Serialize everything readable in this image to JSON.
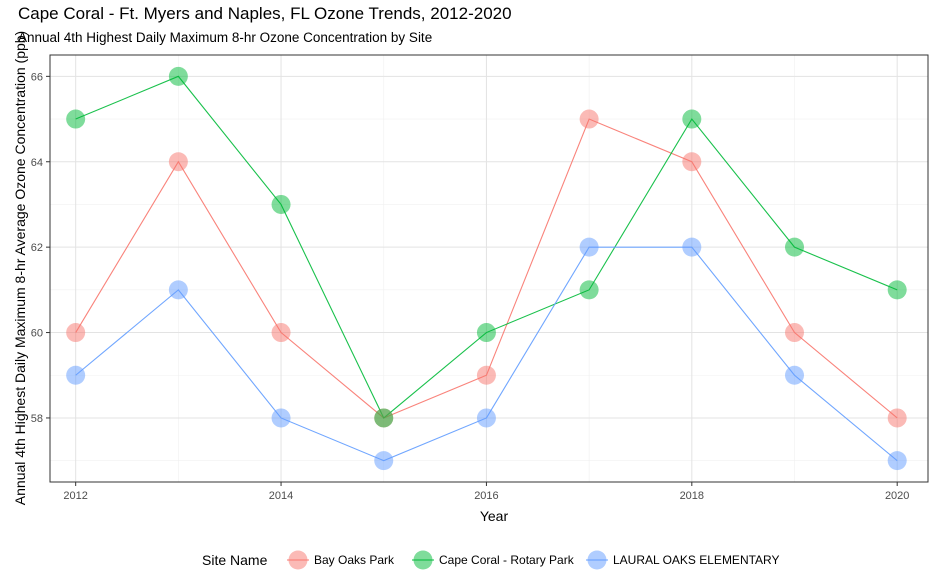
{
  "title": "Cape Coral - Ft. Myers and Naples, FL Ozone Trends, 2012-2020",
  "subtitle": "Annual 4th Highest Daily Maximum 8-hr Ozone Concentration by Site",
  "chart_data": {
    "type": "line",
    "xlabel": "Year",
    "ylabel": "Annual 4th Highest Daily Maximum 8-hr Average Ozone Concentration (ppb)",
    "x": [
      2012,
      2013,
      2014,
      2015,
      2016,
      2017,
      2018,
      2019,
      2020
    ],
    "xlim": [
      2011.75,
      2020.3
    ],
    "ylim": [
      56.5,
      66.5
    ],
    "xticks": [
      2012,
      2014,
      2016,
      2018,
      2020
    ],
    "yticks": [
      58,
      60,
      62,
      64,
      66
    ],
    "grid": true,
    "legend_title": "Site Name",
    "legend_position": "bottom",
    "series": [
      {
        "name": "Bay Oaks Park",
        "color": "#F8766D",
        "values": [
          60,
          64,
          60,
          58,
          59,
          65,
          64,
          60,
          58
        ]
      },
      {
        "name": "Cape Coral - Rotary Park",
        "color": "#00BA38",
        "values": [
          65,
          66,
          63,
          58,
          60,
          61,
          65,
          62,
          61
        ]
      },
      {
        "name": "LAURAL OAKS ELEMENTARY",
        "color": "#619CFF",
        "values": [
          59,
          61,
          58,
          57,
          58,
          62,
          62,
          59,
          57
        ]
      }
    ]
  }
}
